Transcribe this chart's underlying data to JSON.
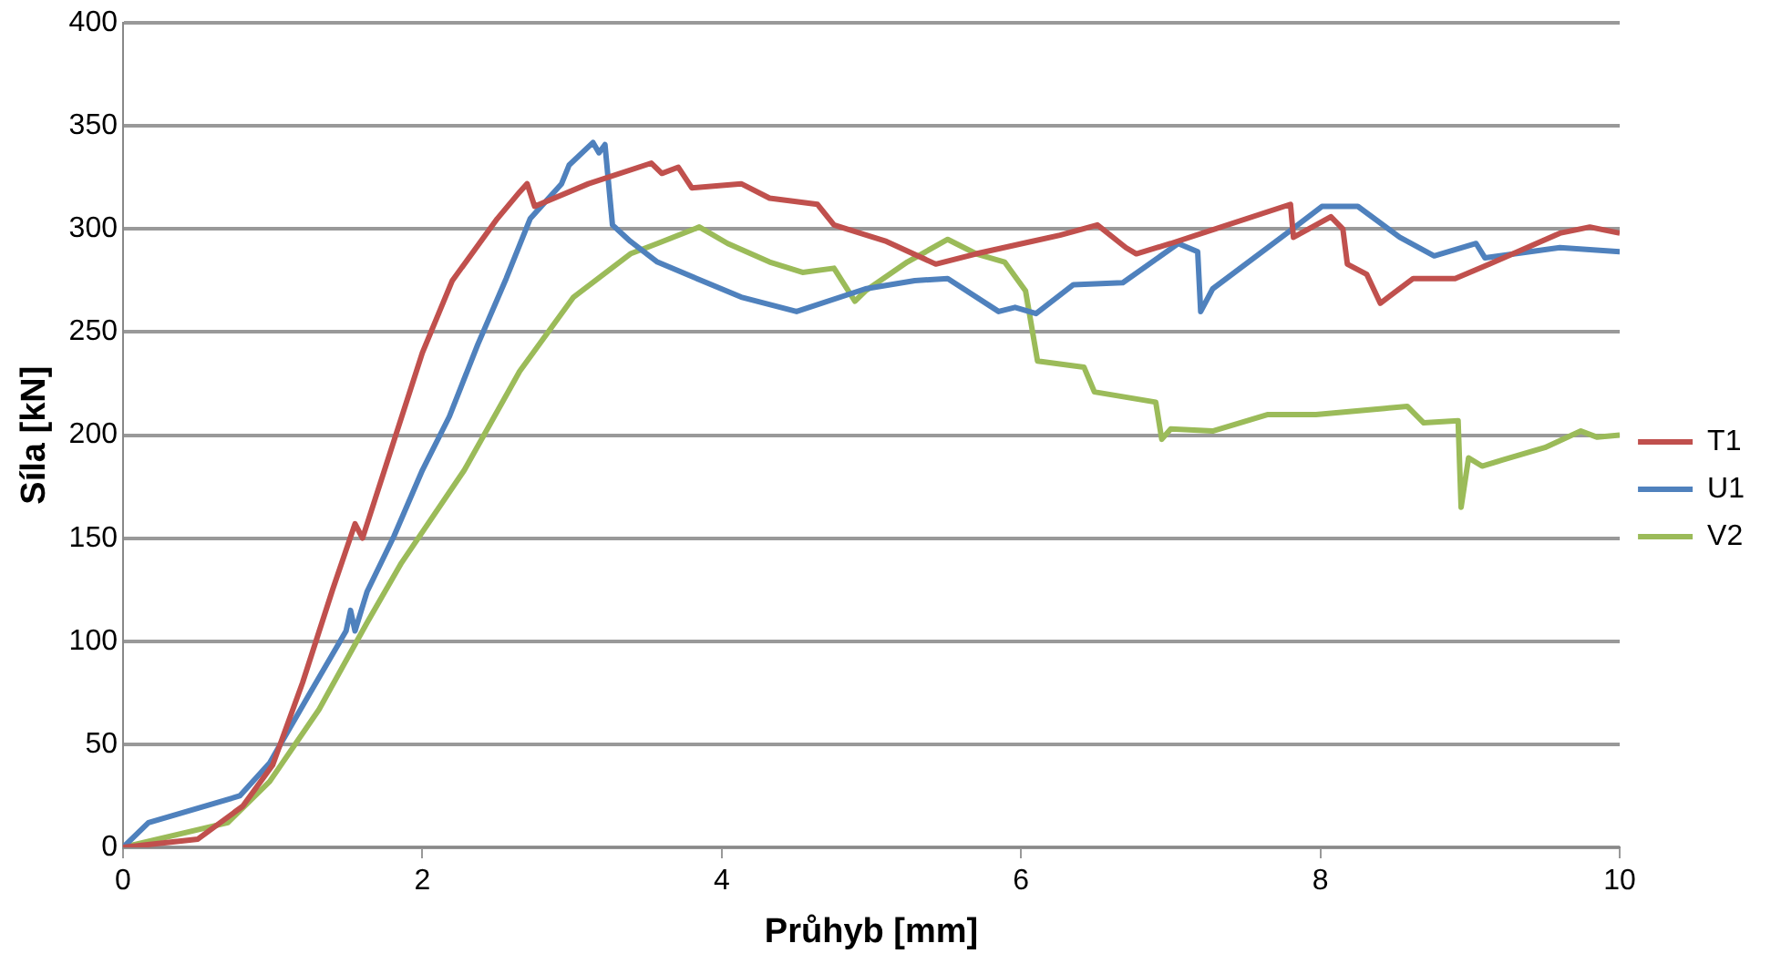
{
  "chart_data": {
    "type": "line",
    "xlabel": "Průhyb [mm]",
    "ylabel": "Síla [kN]",
    "xlim": [
      0,
      10
    ],
    "xticks": [
      0,
      2,
      4,
      6,
      8,
      10
    ],
    "ylim": [
      0,
      400
    ],
    "yticks": [
      0,
      50,
      100,
      150,
      200,
      250,
      300,
      350,
      400
    ],
    "grid": "y",
    "legend": "right",
    "marker": "none",
    "line_style": "solid",
    "series": [
      {
        "name": "T1",
        "color": "#c0504d",
        "x": [
          0,
          0.5,
          0.8,
          1.0,
          1.2,
          1.4,
          1.55,
          1.6,
          1.8,
          2.0,
          2.2,
          2.5,
          2.65,
          2.7,
          2.75,
          3.11,
          3.53,
          3.6,
          3.71,
          3.8,
          4.13,
          4.32,
          4.64,
          4.75,
          5.1,
          5.43,
          5.7,
          6.07,
          6.26,
          6.51,
          6.7,
          6.77,
          7.0,
          7.8,
          7.82,
          8.07,
          8.15,
          8.18,
          8.31,
          8.4,
          8.62,
          8.9,
          9.13,
          9.6,
          9.8,
          10
        ],
        "values": [
          0,
          4,
          20,
          40,
          80,
          125,
          157,
          150,
          195,
          240,
          275,
          305,
          318,
          322,
          311,
          322,
          332,
          327,
          330,
          320,
          322,
          315,
          312,
          302,
          294,
          283,
          288,
          294,
          297,
          302,
          291,
          288,
          293,
          312,
          296,
          306,
          300,
          283,
          278,
          264,
          276,
          276,
          283,
          298,
          301,
          298
        ]
      },
      {
        "name": "U1",
        "color": "#4f81bd",
        "x": [
          0,
          0.17,
          0.78,
          0.98,
          1.21,
          1.49,
          1.52,
          1.55,
          1.63,
          1.81,
          2.0,
          2.18,
          2.37,
          2.56,
          2.72,
          2.93,
          2.98,
          3.14,
          3.18,
          3.22,
          3.27,
          3.39,
          3.57,
          4.13,
          4.5,
          4.96,
          5.29,
          5.51,
          5.85,
          5.96,
          6.1,
          6.35,
          6.68,
          7.05,
          7.18,
          7.2,
          7.28,
          7.74,
          8.01,
          8.25,
          8.53,
          8.76,
          9.04,
          9.1,
          9.6,
          10
        ],
        "values": [
          0,
          12,
          25,
          41,
          70,
          105,
          115,
          105,
          124,
          151,
          183,
          209,
          244,
          276,
          305,
          322,
          331,
          342,
          337,
          341,
          302,
          294,
          284,
          267,
          260,
          271,
          275,
          276,
          260,
          262,
          259,
          273,
          274,
          293,
          289,
          260,
          271,
          296,
          311,
          311,
          296,
          287,
          293,
          286,
          291,
          289
        ]
      },
      {
        "name": "V2",
        "color": "#9bbb59",
        "x": [
          0,
          0.7,
          0.98,
          1.31,
          1.63,
          1.86,
          2.28,
          2.65,
          3.01,
          3.39,
          3.57,
          3.85,
          4.04,
          4.32,
          4.54,
          4.75,
          4.89,
          4.96,
          5.24,
          5.51,
          5.7,
          5.89,
          6.03,
          6.11,
          6.42,
          6.49,
          6.9,
          6.94,
          7.0,
          7.28,
          7.65,
          7.97,
          8.43,
          8.58,
          8.69,
          8.92,
          8.94,
          8.99,
          9.08,
          9.22,
          9.5,
          9.74,
          9.85,
          10
        ],
        "values": [
          0,
          12,
          32,
          67,
          109,
          138,
          183,
          231,
          267,
          288,
          293,
          301,
          293,
          284,
          279,
          281,
          265,
          270,
          284,
          295,
          288,
          284,
          270,
          236,
          233,
          221,
          216,
          198,
          203,
          202,
          210,
          210,
          213,
          214,
          206,
          207,
          165,
          189,
          185,
          188,
          194,
          202,
          199,
          200
        ]
      }
    ]
  }
}
